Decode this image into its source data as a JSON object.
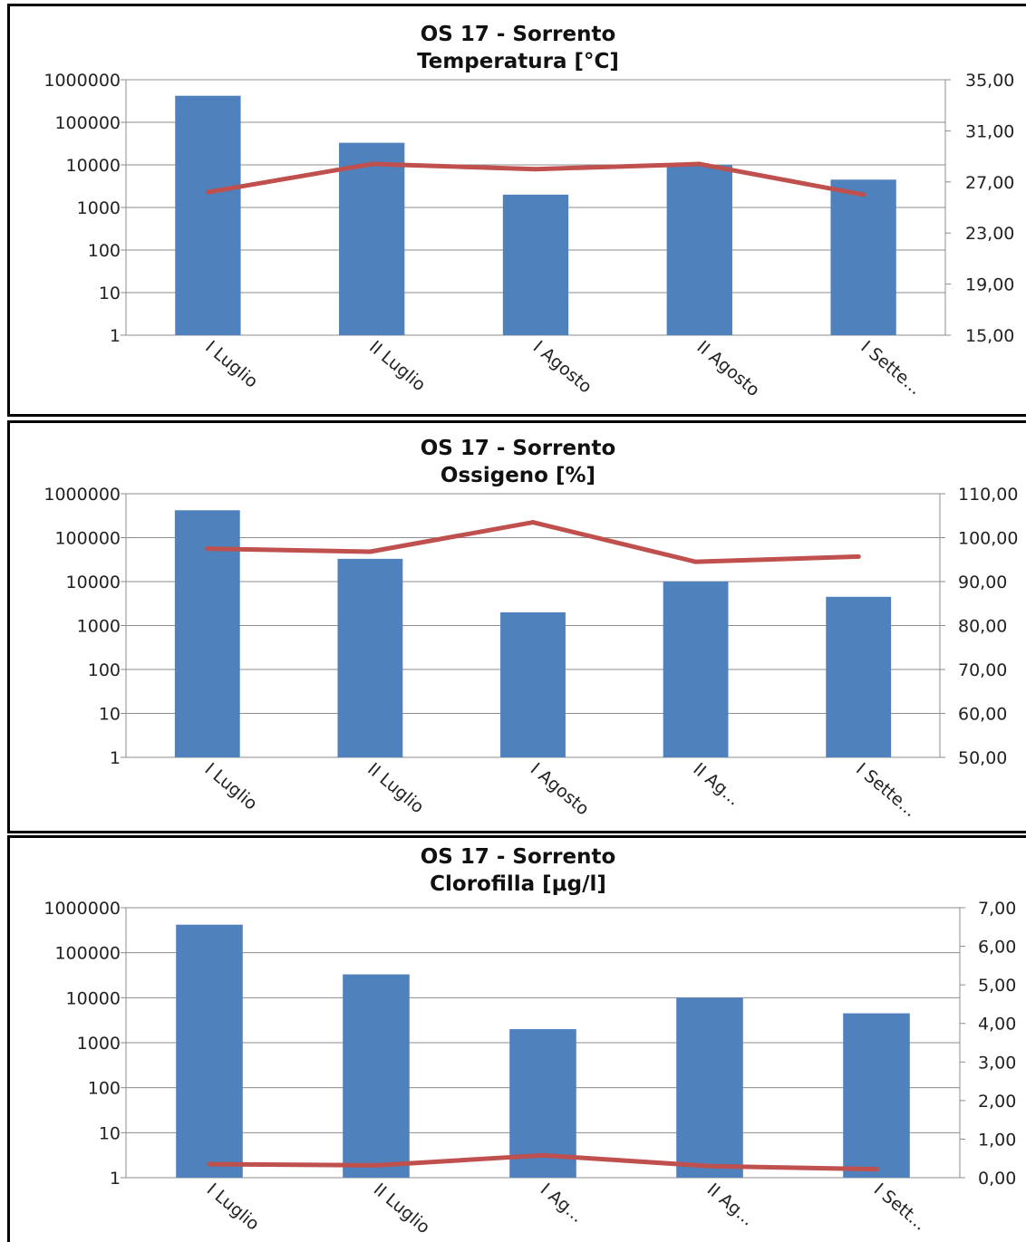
{
  "chart_data": [
    {
      "type": "bar",
      "title": "OS 17 - Sorrento",
      "subtitle": "Temperatura [°C]",
      "categories": [
        "I Luglio",
        "II Luglio",
        "I Agosto",
        "II Agosto",
        "I Sette..."
      ],
      "y_scale": "log",
      "ylim": [
        1,
        1000000
      ],
      "y_ticks": [
        "1000000",
        "100000",
        "10000",
        "1000",
        "100",
        "10",
        "1"
      ],
      "y2lim": [
        15,
        35
      ],
      "y2_ticks": [
        "35,00",
        "31,00",
        "27,00",
        "23,00",
        "19,00",
        "15,00"
      ],
      "series": [
        {
          "type": "bar",
          "axis": "left",
          "color": "#4f81bd",
          "values": [
            420000,
            33000,
            2000,
            10000,
            4500
          ]
        },
        {
          "type": "line",
          "axis": "right",
          "color": "#c0504d",
          "values": [
            26.2,
            28.4,
            28.0,
            28.4,
            26.0
          ]
        }
      ],
      "grid": true
    },
    {
      "type": "bar",
      "title": "OS 17 - Sorrento",
      "subtitle": "Ossigeno [%]",
      "categories": [
        "I Luglio",
        "II Luglio",
        "I Agosto",
        "II Ag...",
        "I Sette..."
      ],
      "y_scale": "log",
      "ylim": [
        1,
        1000000
      ],
      "y_ticks": [
        "1000000",
        "100000",
        "10000",
        "1000",
        "100",
        "10",
        "1"
      ],
      "y2lim": [
        50,
        110
      ],
      "y2_ticks": [
        "110,00",
        "100,00",
        "90,00",
        "80,00",
        "70,00",
        "60,00",
        "50,00"
      ],
      "series": [
        {
          "type": "bar",
          "axis": "left",
          "color": "#4f81bd",
          "values": [
            420000,
            33000,
            2000,
            10000,
            4500
          ]
        },
        {
          "type": "line",
          "axis": "right",
          "color": "#c0504d",
          "values": [
            97.5,
            96.8,
            103.5,
            94.5,
            95.7
          ]
        }
      ],
      "grid": true
    },
    {
      "type": "bar",
      "title": "OS 17 - Sorrento",
      "subtitle": "Clorofilla [μg/l]",
      "categories": [
        "I Luglio",
        "II Luglio",
        "I Ag...",
        "II Ag...",
        "I Sett..."
      ],
      "y_scale": "log",
      "ylim": [
        1,
        1000000
      ],
      "y_ticks": [
        "1000000",
        "100000",
        "10000",
        "1000",
        "100",
        "10",
        "1"
      ],
      "y2lim": [
        0,
        7
      ],
      "y2_ticks": [
        "7,00",
        "6,00",
        "5,00",
        "4,00",
        "3,00",
        "2,00",
        "1,00",
        "0,00"
      ],
      "series": [
        {
          "type": "bar",
          "axis": "left",
          "color": "#4f81bd",
          "values": [
            420000,
            33000,
            2000,
            10000,
            4500
          ]
        },
        {
          "type": "line",
          "axis": "right",
          "color": "#c0504d",
          "values": [
            0.35,
            0.32,
            0.58,
            0.3,
            0.22
          ]
        }
      ],
      "grid": true
    }
  ]
}
